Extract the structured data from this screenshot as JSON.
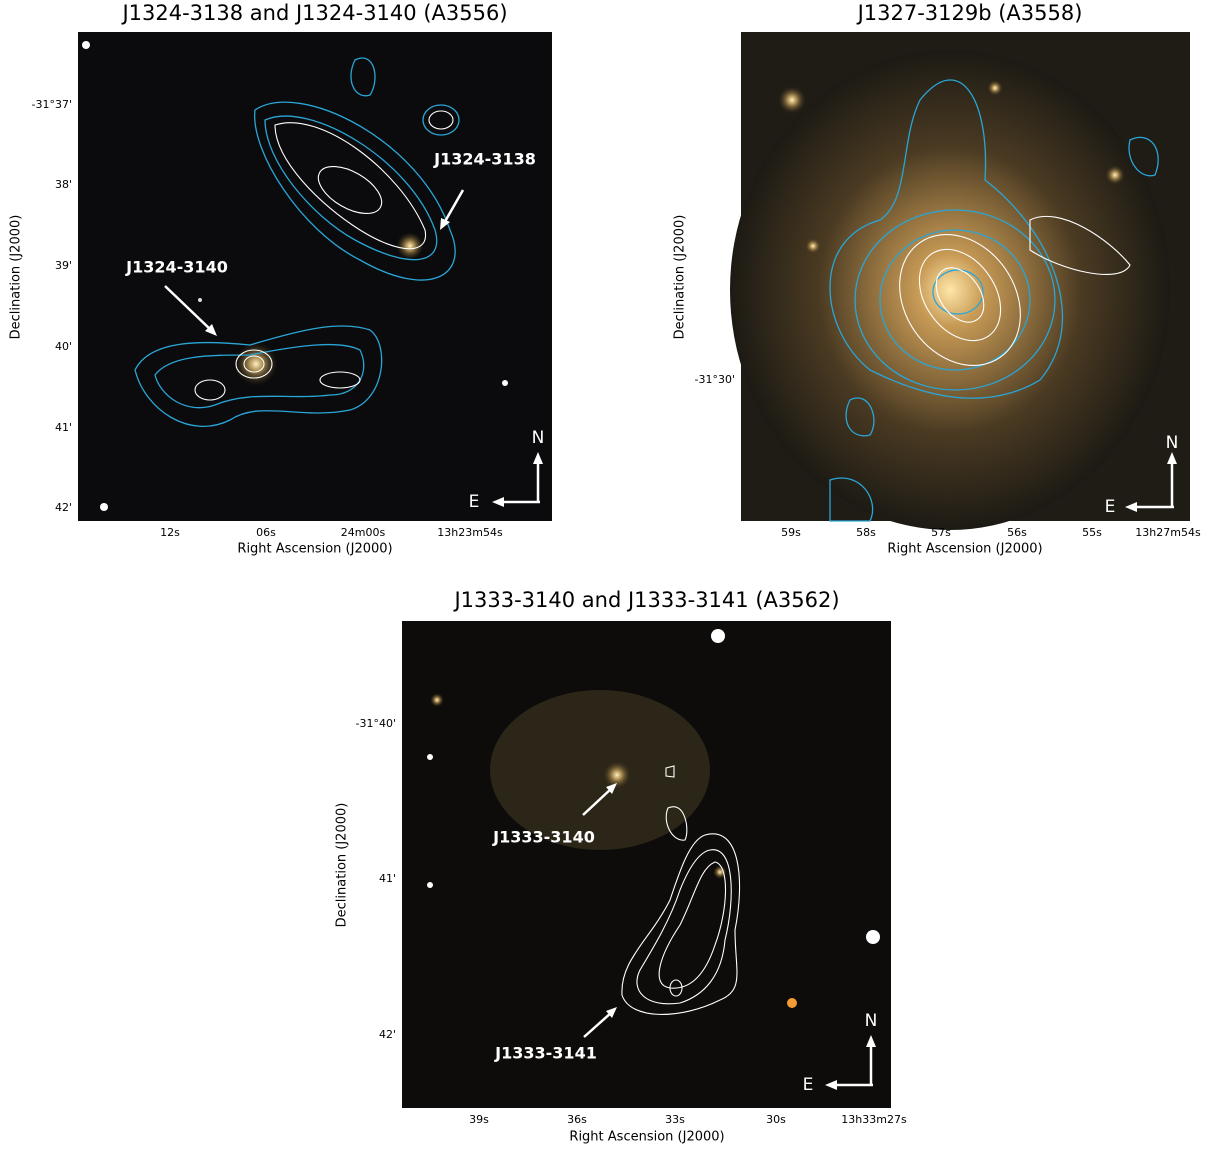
{
  "panels": [
    {
      "title": "J1324-3138 and J1324-3140 (A3556)",
      "x_label": "Right Ascension (J2000)",
      "y_label": "Declination (J2000)",
      "x_ticks": [
        "12s",
        "06s",
        "24m00s",
        "13h23m54s"
      ],
      "y_ticks": [
        "-31°37'",
        "38'",
        "39'",
        "40'",
        "41'",
        "42'"
      ],
      "annotations": [
        "J1324-3138",
        "J1324-3140"
      ],
      "compass": {
        "north": "N",
        "east": "E"
      }
    },
    {
      "title": "J1327-3129b (A3558)",
      "x_label": "Right Ascension (J2000)",
      "y_label": "Declination (J2000)",
      "x_ticks": [
        "59s",
        "58s",
        "57s",
        "56s",
        "55s",
        "13h27m54s"
      ],
      "y_ticks": [
        "-31°30'"
      ],
      "annotations": [],
      "compass": {
        "north": "N",
        "east": "E"
      }
    },
    {
      "title": "J1333-3140 and J1333-3141 (A3562)",
      "x_label": "Right Ascension (J2000)",
      "y_label": "Declination (J2000)",
      "x_ticks": [
        "39s",
        "36s",
        "33s",
        "30s",
        "13h33m27s"
      ],
      "y_ticks": [
        "-31°40'",
        "41'",
        "42'"
      ],
      "annotations": [
        "J1333-3140",
        "J1333-3141"
      ],
      "compass": {
        "north": "N",
        "east": "E"
      }
    }
  ]
}
